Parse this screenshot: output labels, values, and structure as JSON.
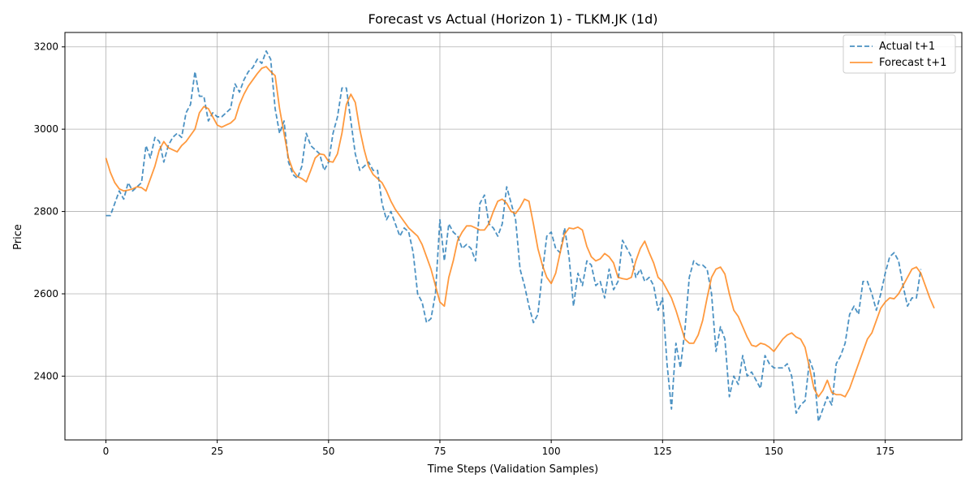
{
  "chart_data": {
    "type": "line",
    "title": "Forecast vs Actual (Horizon 1) - TLKM.JK (1d)",
    "xlabel": "Time Steps (Validation Samples)",
    "ylabel": "Price",
    "xlim": [
      -9.2,
      192.2
    ],
    "ylim": [
      2245,
      3235
    ],
    "xticks": [
      0,
      25,
      50,
      75,
      100,
      125,
      150,
      175
    ],
    "yticks": [
      2400,
      2600,
      2800,
      3000,
      3200
    ],
    "grid": true,
    "legend_position": "top-right",
    "series": [
      {
        "name": "Actual t+1",
        "style": "dashed",
        "color": "#1f77b4",
        "values": [
          2790,
          2790,
          2820,
          2850,
          2830,
          2870,
          2850,
          2860,
          2870,
          2960,
          2930,
          2980,
          2970,
          2920,
          2960,
          2980,
          2990,
          2980,
          3040,
          3060,
          3140,
          3080,
          3080,
          3020,
          3040,
          3030,
          3030,
          3040,
          3050,
          3110,
          3090,
          3120,
          3140,
          3150,
          3170,
          3160,
          3190,
          3170,
          3050,
          2990,
          3020,
          2920,
          2890,
          2880,
          2910,
          2990,
          2960,
          2950,
          2940,
          2900,
          2920,
          2990,
          3030,
          3100,
          3100,
          3020,
          2940,
          2900,
          2910,
          2920,
          2900,
          2900,
          2820,
          2780,
          2800,
          2770,
          2740,
          2760,
          2750,
          2700,
          2600,
          2580,
          2530,
          2540,
          2600,
          2780,
          2680,
          2770,
          2750,
          2740,
          2710,
          2720,
          2710,
          2680,
          2820,
          2840,
          2770,
          2760,
          2740,
          2770,
          2860,
          2820,
          2780,
          2660,
          2620,
          2570,
          2530,
          2550,
          2650,
          2740,
          2750,
          2710,
          2700,
          2760,
          2690,
          2570,
          2650,
          2620,
          2680,
          2670,
          2620,
          2630,
          2590,
          2660,
          2610,
          2630,
          2730,
          2710,
          2690,
          2640,
          2660,
          2630,
          2640,
          2620,
          2560,
          2590,
          2430,
          2320,
          2480,
          2420,
          2510,
          2640,
          2680,
          2670,
          2670,
          2660,
          2600,
          2460,
          2520,
          2490,
          2350,
          2400,
          2380,
          2450,
          2400,
          2410,
          2390,
          2370,
          2450,
          2430,
          2420,
          2420,
          2420,
          2430,
          2400,
          2310,
          2330,
          2340,
          2440,
          2410,
          2290,
          2320,
          2350,
          2330,
          2430,
          2450,
          2480,
          2550,
          2570,
          2550,
          2630,
          2630,
          2600,
          2560,
          2600,
          2650,
          2690,
          2700,
          2680,
          2620,
          2570,
          2590,
          2590,
          2660
        ]
      },
      {
        "name": "Forecast t+1",
        "style": "solid",
        "color": "#ff7f0e",
        "values": [
          2930,
          2895,
          2870,
          2855,
          2850,
          2852,
          2855,
          2860,
          2858,
          2850,
          2880,
          2910,
          2950,
          2970,
          2955,
          2950,
          2945,
          2960,
          2970,
          2985,
          3000,
          3040,
          3055,
          3050,
          3030,
          3010,
          3005,
          3010,
          3015,
          3025,
          3060,
          3085,
          3105,
          3120,
          3135,
          3148,
          3152,
          3140,
          3130,
          3050,
          2990,
          2930,
          2900,
          2885,
          2880,
          2872,
          2900,
          2930,
          2940,
          2938,
          2922,
          2920,
          2940,
          2990,
          3060,
          3085,
          3065,
          3000,
          2950,
          2910,
          2890,
          2880,
          2870,
          2850,
          2825,
          2805,
          2790,
          2775,
          2760,
          2750,
          2740,
          2720,
          2690,
          2660,
          2620,
          2580,
          2570,
          2640,
          2680,
          2730,
          2750,
          2765,
          2765,
          2760,
          2755,
          2755,
          2770,
          2800,
          2825,
          2830,
          2820,
          2800,
          2795,
          2810,
          2830,
          2825,
          2770,
          2710,
          2670,
          2640,
          2625,
          2650,
          2700,
          2745,
          2760,
          2758,
          2762,
          2755,
          2715,
          2690,
          2680,
          2685,
          2698,
          2690,
          2675,
          2640,
          2637,
          2635,
          2640,
          2680,
          2710,
          2728,
          2700,
          2675,
          2640,
          2630,
          2610,
          2590,
          2560,
          2525,
          2490,
          2480,
          2480,
          2500,
          2535,
          2590,
          2640,
          2660,
          2665,
          2648,
          2600,
          2560,
          2545,
          2520,
          2495,
          2475,
          2472,
          2480,
          2477,
          2470,
          2460,
          2475,
          2490,
          2500,
          2505,
          2495,
          2490,
          2470,
          2420,
          2370,
          2350,
          2365,
          2390,
          2360,
          2355,
          2355,
          2350,
          2370,
          2400,
          2430,
          2460,
          2490,
          2505,
          2535,
          2565,
          2580,
          2590,
          2588,
          2600,
          2620,
          2640,
          2660,
          2665,
          2650,
          2620,
          2590,
          2565
        ]
      }
    ]
  }
}
